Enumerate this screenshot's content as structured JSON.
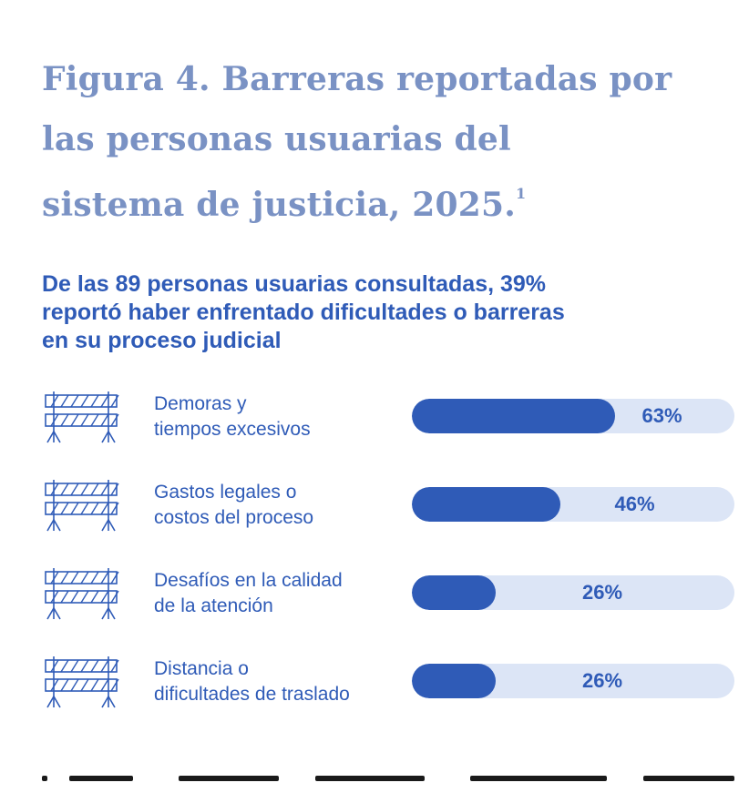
{
  "figure": {
    "title_lines": [
      "Figura 4. Barreras reportadas por",
      "las personas usuarias del",
      "sistema de justicia, 2025."
    ],
    "title_footnote": "1",
    "subtitle_lines": [
      "De las 89 personas usuarias consultadas, 39%",
      "reportó haber enfrentado dificultades o barreras",
      "en su proceso judicial"
    ]
  },
  "colors": {
    "title": "#7a92c4",
    "accent": "#2f5bb7",
    "bar_track": "#dce5f6"
  },
  "icons": {
    "row_icon": "road-barrier-icon"
  },
  "chart_data": {
    "type": "bar",
    "orientation": "horizontal",
    "categories": [
      [
        "Demoras y",
        "tiempos excesivos"
      ],
      [
        "Gastos legales o",
        "costos del proceso"
      ],
      [
        "Desafíos en la calidad",
        "de la atención"
      ],
      [
        "Distancia o",
        "dificultades de traslado"
      ]
    ],
    "values": [
      63,
      46,
      26,
      26
    ],
    "value_labels": [
      "63%",
      "46%",
      "26%",
      "26%"
    ],
    "unit": "%",
    "xlim": [
      0,
      100
    ],
    "grid": false,
    "legend": "none"
  }
}
